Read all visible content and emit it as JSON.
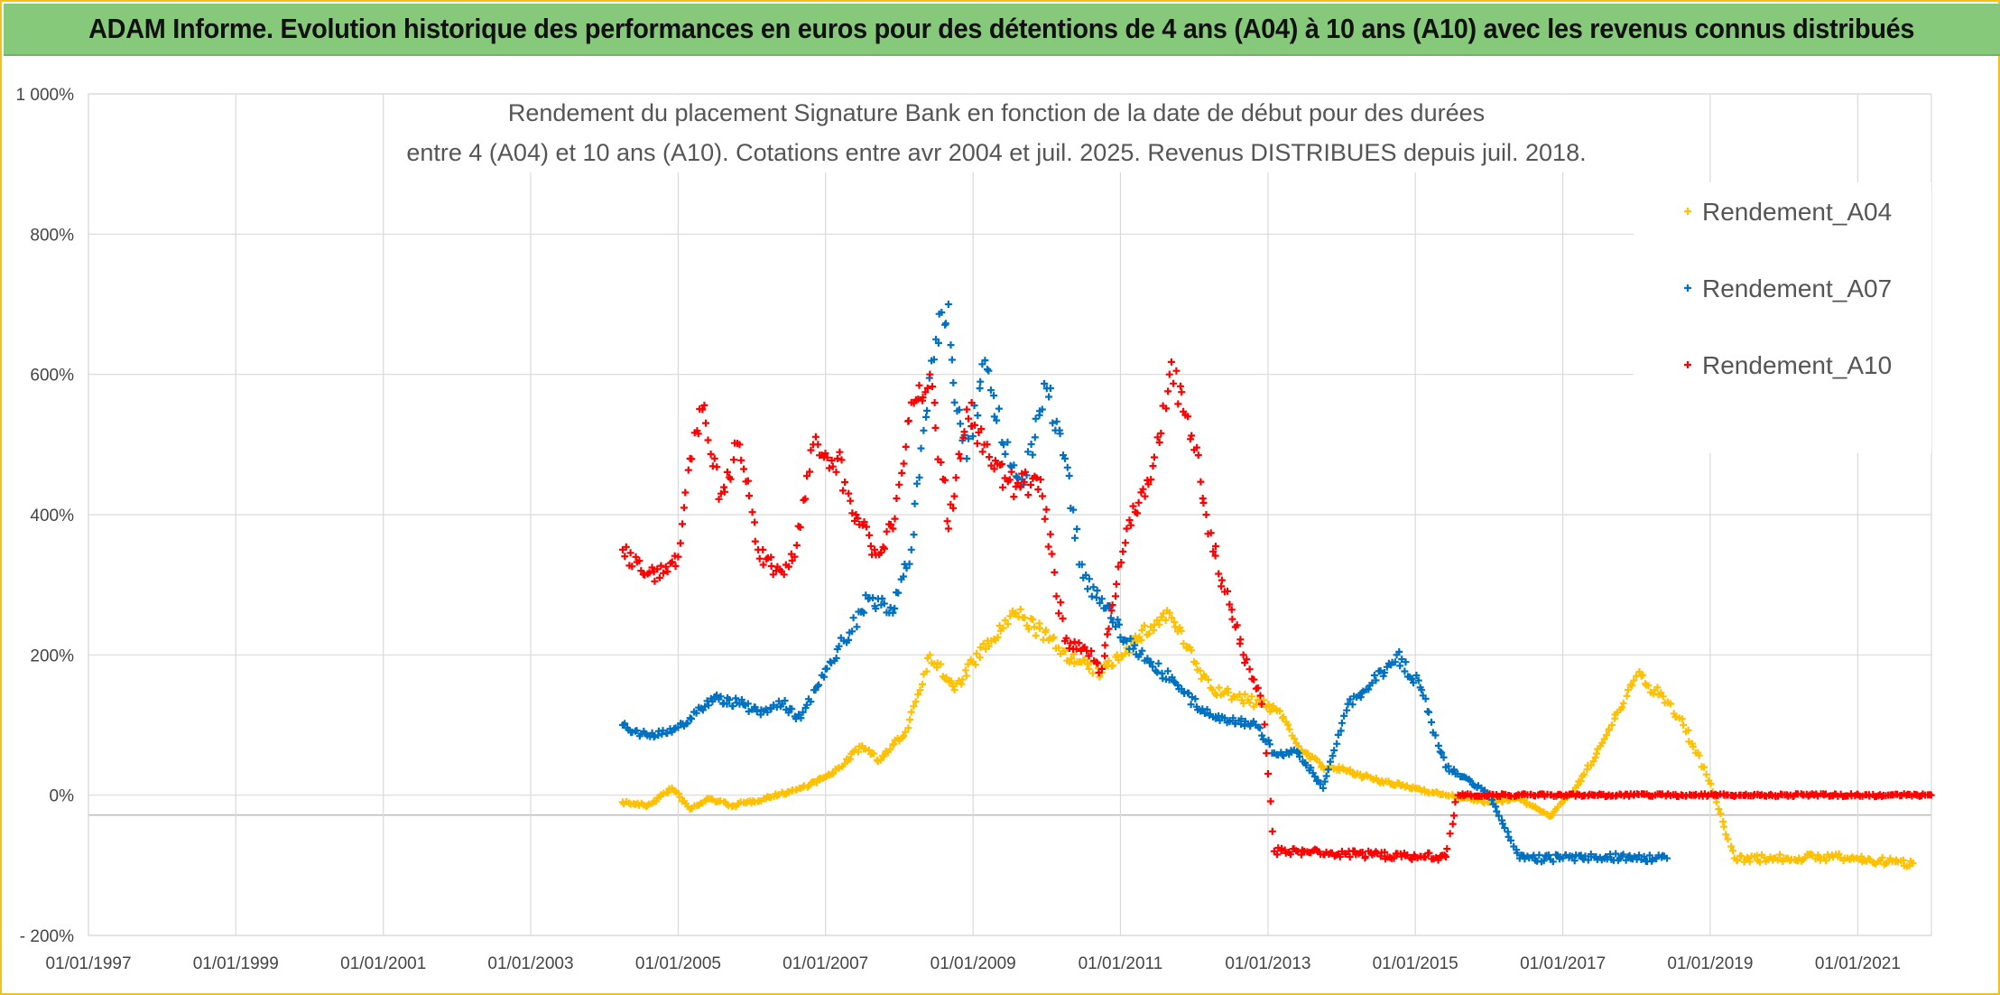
{
  "banner": {
    "title": "ADAM Informe. Evolution historique des performances en euros pour des détentions de 4 ans (A04) à 10 ans (A10) avec les revenus connus distribués",
    "background": "#86c97a"
  },
  "chart_data": {
    "type": "scatter",
    "title_lines": [
      "Rendement du placement Signature Bank en fonction de la date de début pour des durées",
      "entre 4 (A04) et 10 ans (A10). Cotations entre avr 2004 et juil. 2025. Revenus DISTRIBUES depuis juil. 2018."
    ],
    "xlabel": "",
    "ylabel": "",
    "x_tick_labels": [
      "01/01/1997",
      "01/01/1999",
      "01/01/2001",
      "01/01/2003",
      "01/01/2005",
      "01/01/2007",
      "01/01/2009",
      "01/01/2011",
      "01/01/2013",
      "01/01/2015",
      "01/01/2017",
      "01/01/2019",
      "01/01/2021"
    ],
    "y_tick_labels": [
      "1 000%",
      "800%",
      "600%",
      "400%",
      "200%",
      "0%",
      "- 200%"
    ],
    "xlim": [
      "1997-01-01",
      "2022-01-01"
    ],
    "ylim": [
      -200,
      1000
    ],
    "grid": true,
    "legend_position": "top-right",
    "marker": "+",
    "series": [
      {
        "name": "Rendement_A04",
        "color": "#ffc000",
        "points": [
          [
            "2004-04-01",
            -10
          ],
          [
            "2004-08-01",
            -15
          ],
          [
            "2004-12-01",
            10
          ],
          [
            "2005-03-01",
            -20
          ],
          [
            "2005-06-01",
            -5
          ],
          [
            "2005-10-01",
            -15
          ],
          [
            "2006-03-01",
            -5
          ],
          [
            "2006-09-01",
            10
          ],
          [
            "2007-02-01",
            30
          ],
          [
            "2007-07-01",
            70
          ],
          [
            "2007-10-01",
            50
          ],
          [
            "2008-02-01",
            90
          ],
          [
            "2008-06-01",
            200
          ],
          [
            "2008-10-01",
            150
          ],
          [
            "2009-01-01",
            190
          ],
          [
            "2009-04-01",
            220
          ],
          [
            "2009-08-01",
            260
          ],
          [
            "2009-11-01",
            240
          ],
          [
            "2010-03-01",
            210
          ],
          [
            "2010-06-01",
            190
          ],
          [
            "2010-10-01",
            175
          ],
          [
            "2011-02-01",
            210
          ],
          [
            "2011-06-01",
            240
          ],
          [
            "2011-09-01",
            260
          ],
          [
            "2012-01-01",
            190
          ],
          [
            "2012-04-01",
            150
          ],
          [
            "2012-08-01",
            140
          ],
          [
            "2012-12-01",
            130
          ],
          [
            "2013-03-01",
            120
          ],
          [
            "2013-06-01",
            70
          ],
          [
            "2013-10-01",
            40
          ],
          [
            "2014-02-01",
            35
          ],
          [
            "2014-07-01",
            20
          ],
          [
            "2015-01-01",
            10
          ],
          [
            "2015-06-01",
            0
          ],
          [
            "2016-01-01",
            -10
          ],
          [
            "2016-06-01",
            -5
          ],
          [
            "2016-11-01",
            -30
          ],
          [
            "2017-04-01",
            20
          ],
          [
            "2017-09-01",
            100
          ],
          [
            "2018-01-01",
            170
          ],
          [
            "2018-04-01",
            150
          ],
          [
            "2018-08-01",
            110
          ],
          [
            "2018-12-01",
            40
          ],
          [
            "2019-02-01",
            -10
          ],
          [
            "2019-05-01",
            -90
          ],
          [
            "2020-01-01",
            -90
          ],
          [
            "2020-09-01",
            -88
          ],
          [
            "2021-06-01",
            -95
          ],
          [
            "2021-10-01",
            -97
          ]
        ]
      },
      {
        "name": "Rendement_A07",
        "color": "#0070c0",
        "points": [
          [
            "2004-04-01",
            100
          ],
          [
            "2004-08-01",
            85
          ],
          [
            "2004-12-01",
            90
          ],
          [
            "2005-03-01",
            110
          ],
          [
            "2005-07-01",
            140
          ],
          [
            "2005-11-01",
            130
          ],
          [
            "2006-03-01",
            120
          ],
          [
            "2006-06-01",
            130
          ],
          [
            "2006-09-01",
            110
          ],
          [
            "2007-01-01",
            180
          ],
          [
            "2007-04-01",
            220
          ],
          [
            "2007-08-01",
            280
          ],
          [
            "2007-12-01",
            260
          ],
          [
            "2008-03-01",
            350
          ],
          [
            "2008-05-01",
            520
          ],
          [
            "2008-07-01",
            650
          ],
          [
            "2008-09-01",
            700
          ],
          [
            "2008-10-01",
            560
          ],
          [
            "2008-12-01",
            480
          ],
          [
            "2009-03-01",
            620
          ],
          [
            "2009-06-01",
            500
          ],
          [
            "2009-09-01",
            450
          ],
          [
            "2010-01-01",
            580
          ],
          [
            "2010-04-01",
            480
          ],
          [
            "2010-07-01",
            310
          ],
          [
            "2010-10-01",
            280
          ],
          [
            "2011-02-01",
            220
          ],
          [
            "2011-06-01",
            190
          ],
          [
            "2011-10-01",
            160
          ],
          [
            "2012-02-01",
            120
          ],
          [
            "2012-06-01",
            110
          ],
          [
            "2012-11-01",
            100
          ],
          [
            "2013-02-01",
            60
          ],
          [
            "2013-06-01",
            60
          ],
          [
            "2013-10-01",
            10
          ],
          [
            "2014-02-01",
            130
          ],
          [
            "2014-06-01",
            160
          ],
          [
            "2014-10-01",
            200
          ],
          [
            "2015-02-01",
            150
          ],
          [
            "2015-06-01",
            40
          ],
          [
            "2015-10-01",
            20
          ],
          [
            "2016-01-01",
            0
          ],
          [
            "2016-06-01",
            -90
          ],
          [
            "2017-01-01",
            -90
          ],
          [
            "2017-08-01",
            -88
          ],
          [
            "2018-06-01",
            -90
          ]
        ]
      },
      {
        "name": "Rendement_A10",
        "color": "#ff0000",
        "points": [
          [
            "2004-04-01",
            350
          ],
          [
            "2004-07-01",
            320
          ],
          [
            "2004-10-01",
            310
          ],
          [
            "2005-01-01",
            340
          ],
          [
            "2005-03-01",
            480
          ],
          [
            "2005-05-01",
            550
          ],
          [
            "2005-08-01",
            430
          ],
          [
            "2005-11-01",
            500
          ],
          [
            "2006-02-01",
            350
          ],
          [
            "2006-05-01",
            320
          ],
          [
            "2006-08-01",
            340
          ],
          [
            "2006-11-01",
            500
          ],
          [
            "2007-03-01",
            480
          ],
          [
            "2007-06-01",
            400
          ],
          [
            "2007-09-01",
            350
          ],
          [
            "2007-12-01",
            380
          ],
          [
            "2008-03-01",
            560
          ],
          [
            "2008-06-01",
            600
          ],
          [
            "2008-09-01",
            380
          ],
          [
            "2008-12-01",
            550
          ],
          [
            "2009-04-01",
            470
          ],
          [
            "2009-08-01",
            440
          ],
          [
            "2009-12-01",
            450
          ],
          [
            "2010-04-01",
            220
          ],
          [
            "2010-07-01",
            210
          ],
          [
            "2010-10-01",
            180
          ],
          [
            "2011-02-01",
            380
          ],
          [
            "2011-06-01",
            450
          ],
          [
            "2011-09-01",
            600
          ],
          [
            "2011-12-01",
            540
          ],
          [
            "2012-03-01",
            400
          ],
          [
            "2012-06-01",
            290
          ],
          [
            "2012-09-01",
            200
          ],
          [
            "2012-12-01",
            130
          ],
          [
            "2013-02-01",
            -80
          ],
          [
            "2013-08-01",
            -82
          ],
          [
            "2014-06-01",
            -85
          ],
          [
            "2015-06-01",
            -88
          ],
          [
            "2015-08-01",
            0
          ],
          [
            "2017-06-01",
            0
          ],
          [
            "2019-06-01",
            0
          ],
          [
            "2021-06-01",
            0
          ],
          [
            "2021-12-31",
            0
          ]
        ]
      }
    ]
  }
}
